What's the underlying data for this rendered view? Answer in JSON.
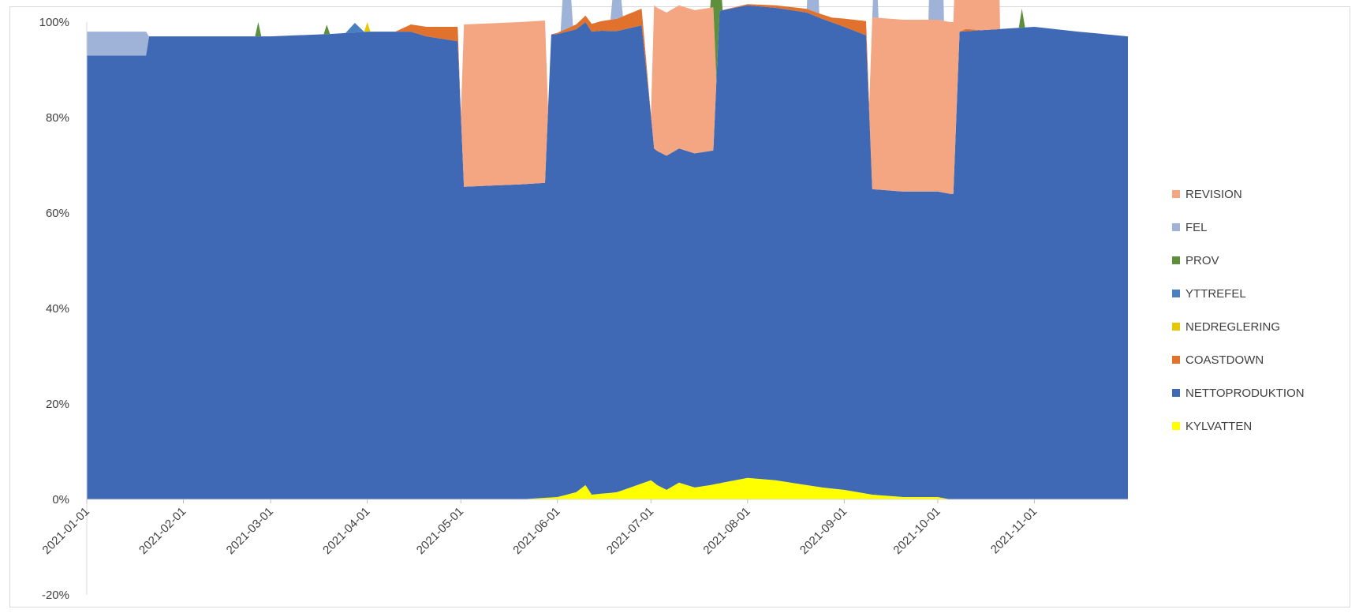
{
  "chart_data": {
    "type": "area",
    "stacked": "percent",
    "title": "",
    "xlabel": "",
    "ylabel": "",
    "ylim": [
      -20,
      100
    ],
    "y_ticks": [
      "-20%",
      "0%",
      "20%",
      "40%",
      "60%",
      "80%",
      "100%"
    ],
    "x_range": [
      "2021-01-01",
      "2021-12-01"
    ],
    "x_ticks": [
      "2021-01-01",
      "2021-02-01",
      "2021-03-01",
      "2021-04-01",
      "2021-05-01",
      "2021-06-01",
      "2021-07-01",
      "2021-08-01",
      "2021-09-01",
      "2021-10-01",
      "2021-11-01"
    ],
    "grid": false,
    "legend_position": "right",
    "series": [
      {
        "name": "KYLVATTEN",
        "color": "#ffff00",
        "points": [
          [
            "2021-01-01",
            0
          ],
          [
            "2021-05-20",
            0
          ],
          [
            "2021-06-01",
            0.5
          ],
          [
            "2021-06-07",
            1.5
          ],
          [
            "2021-06-10",
            3
          ],
          [
            "2021-06-12",
            1
          ],
          [
            "2021-06-20",
            1.5
          ],
          [
            "2021-07-01",
            4
          ],
          [
            "2021-07-03",
            3
          ],
          [
            "2021-07-06",
            2
          ],
          [
            "2021-07-10",
            3.5
          ],
          [
            "2021-07-15",
            2.5
          ],
          [
            "2021-07-20",
            3
          ],
          [
            "2021-08-01",
            4.5
          ],
          [
            "2021-08-10",
            4
          ],
          [
            "2021-08-20",
            3
          ],
          [
            "2021-08-25",
            2.5
          ],
          [
            "2021-09-01",
            2
          ],
          [
            "2021-09-10",
            1
          ],
          [
            "2021-09-20",
            0.5
          ],
          [
            "2021-10-01",
            0.5
          ],
          [
            "2021-10-05",
            0
          ],
          [
            "2021-12-01",
            0
          ]
        ]
      },
      {
        "name": "NETTOPRODUKTION",
        "color": "#3f69b5",
        "points": [
          [
            "2021-01-01",
            93
          ],
          [
            "2021-01-20",
            93
          ],
          [
            "2021-01-21",
            97
          ],
          [
            "2021-02-15",
            97
          ],
          [
            "2021-03-01",
            97
          ],
          [
            "2021-03-20",
            97.5
          ],
          [
            "2021-04-01",
            98
          ],
          [
            "2021-04-15",
            98
          ],
          [
            "2021-04-20",
            97
          ],
          [
            "2021-04-30",
            96
          ],
          [
            "2021-05-02",
            65.5
          ],
          [
            "2021-05-20",
            66
          ],
          [
            "2021-05-28",
            66
          ],
          [
            "2021-05-30",
            97
          ],
          [
            "2021-06-15",
            97
          ],
          [
            "2021-06-28",
            96
          ],
          [
            "2021-07-02",
            70
          ],
          [
            "2021-07-21",
            70
          ],
          [
            "2021-07-23",
            99
          ],
          [
            "2021-08-20",
            99
          ],
          [
            "2021-09-01",
            97
          ],
          [
            "2021-09-08",
            96
          ],
          [
            "2021-09-10",
            64
          ],
          [
            "2021-10-01",
            64
          ],
          [
            "2021-10-06",
            64
          ],
          [
            "2021-10-08",
            98
          ],
          [
            "2021-11-01",
            99
          ],
          [
            "2021-11-15",
            98
          ],
          [
            "2021-12-01",
            97
          ]
        ]
      },
      {
        "name": "COASTDOWN",
        "color": "#e0722d",
        "points": [
          [
            "2021-01-01",
            0
          ],
          [
            "2021-04-10",
            0
          ],
          [
            "2021-04-15",
            1.5
          ],
          [
            "2021-04-30",
            3
          ],
          [
            "2021-05-01",
            0
          ],
          [
            "2021-05-30",
            0
          ],
          [
            "2021-06-15",
            2
          ],
          [
            "2021-06-28",
            3.5
          ],
          [
            "2021-07-01",
            0
          ],
          [
            "2021-07-23",
            0
          ],
          [
            "2021-08-28",
            1
          ],
          [
            "2021-09-08",
            3
          ],
          [
            "2021-09-10",
            0
          ],
          [
            "2021-10-08",
            0
          ],
          [
            "2021-10-10",
            0.5
          ],
          [
            "2021-10-15",
            0
          ],
          [
            "2021-12-01",
            0
          ]
        ]
      },
      {
        "name": "YTTREFEL",
        "color": "#4a7fc0",
        "points": [
          [
            "2021-01-01",
            0
          ],
          [
            "2021-03-25",
            0
          ],
          [
            "2021-03-28",
            2
          ],
          [
            "2021-03-31",
            0
          ],
          [
            "2021-12-01",
            0
          ]
        ]
      },
      {
        "name": "REVISION",
        "color": "#f4a582",
        "points": [
          [
            "2021-01-01",
            0
          ],
          [
            "2021-05-01",
            0
          ],
          [
            "2021-05-02",
            34
          ],
          [
            "2021-05-28",
            34
          ],
          [
            "2021-05-29",
            0
          ],
          [
            "2021-07-01",
            0
          ],
          [
            "2021-07-02",
            30
          ],
          [
            "2021-07-21",
            30
          ],
          [
            "2021-07-22",
            0
          ],
          [
            "2021-09-09",
            0
          ],
          [
            "2021-09-10",
            36
          ],
          [
            "2021-10-20",
            36
          ],
          [
            "2021-10-21",
            0
          ],
          [
            "2021-12-01",
            0
          ]
        ]
      },
      {
        "name": "FEL",
        "color": "#9eb3d7",
        "points": [
          [
            "2021-01-01",
            5
          ],
          [
            "2021-01-20",
            5
          ],
          [
            "2021-01-21",
            0
          ],
          [
            "2021-06-02",
            0
          ],
          [
            "2021-06-04",
            20
          ],
          [
            "2021-06-06",
            0
          ],
          [
            "2021-06-18",
            0
          ],
          [
            "2021-06-20",
            14
          ],
          [
            "2021-06-22",
            0
          ],
          [
            "2021-08-20",
            0
          ],
          [
            "2021-08-22",
            34
          ],
          [
            "2021-08-24",
            0
          ],
          [
            "2021-09-10",
            0
          ],
          [
            "2021-09-11",
            16
          ],
          [
            "2021-09-12",
            0
          ],
          [
            "2021-09-28",
            0
          ],
          [
            "2021-10-01",
            68
          ],
          [
            "2021-10-03",
            0
          ],
          [
            "2021-12-01",
            0
          ]
        ]
      },
      {
        "name": "PROV",
        "color": "#5e8f3c",
        "points": [
          [
            "2021-01-01",
            0
          ],
          [
            "2021-02-24",
            0
          ],
          [
            "2021-02-25",
            3
          ],
          [
            "2021-02-26",
            0
          ],
          [
            "2021-03-18",
            0
          ],
          [
            "2021-03-19",
            2
          ],
          [
            "2021-03-20",
            0
          ],
          [
            "2021-07-20",
            0
          ],
          [
            "2021-07-22",
            18
          ],
          [
            "2021-07-24",
            0
          ],
          [
            "2021-10-27",
            0
          ],
          [
            "2021-10-28",
            4
          ],
          [
            "2021-10-29",
            0
          ],
          [
            "2021-12-01",
            0
          ]
        ]
      },
      {
        "name": "NEDREGLERING",
        "color": "#e6c800",
        "points": [
          [
            "2021-01-01",
            0
          ],
          [
            "2021-03-31",
            0
          ],
          [
            "2021-04-01",
            2
          ],
          [
            "2021-04-02",
            0
          ],
          [
            "2021-12-01",
            0
          ]
        ]
      }
    ]
  },
  "legend_order": [
    "REVISION",
    "FEL",
    "PROV",
    "YTTREFEL",
    "NEDREGLERING",
    "COASTDOWN",
    "NETTOPRODUKTION",
    "KYLVATTEN"
  ],
  "legend_colors": {
    "REVISION": "#f4a582",
    "FEL": "#9eb3d7",
    "PROV": "#5e8f3c",
    "YTTREFEL": "#4a7fc0",
    "NEDREGLERING": "#e6c800",
    "COASTDOWN": "#e0722d",
    "NETTOPRODUKTION": "#3f69b5",
    "KYLVATTEN": "#ffff00"
  }
}
